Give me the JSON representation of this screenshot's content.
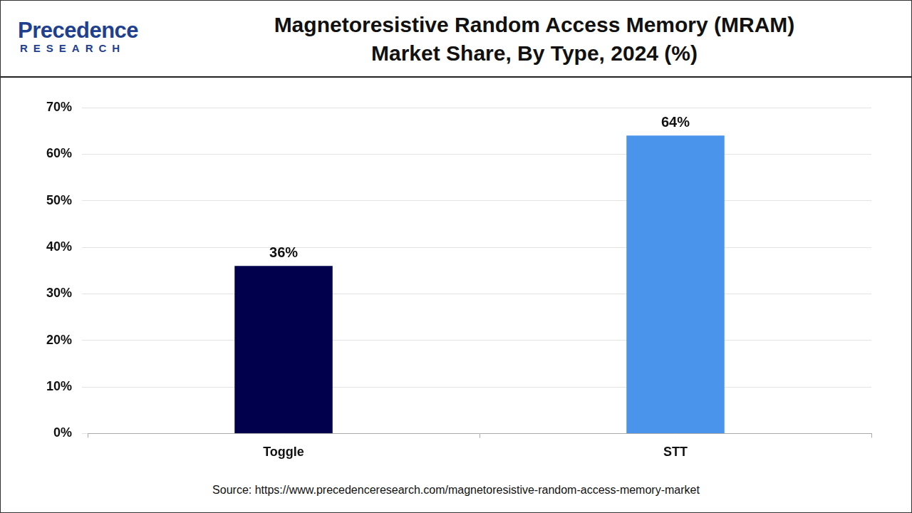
{
  "logo": {
    "name": "Precedence",
    "tagline": "RESEARCH"
  },
  "source": "Source: https://www.precedenceresearch.com/magnetoresistive-random-access-memory-market",
  "chart_data": {
    "type": "bar",
    "title": [
      "Magnetoresistive Random Access Memory (MRAM)",
      "Market Share, By Type, 2024 (%)"
    ],
    "categories": [
      "Toggle",
      "STT"
    ],
    "values": [
      36,
      64
    ],
    "value_labels": [
      "36%",
      "64%"
    ],
    "colors": [
      "#00004d",
      "#4a94ec"
    ],
    "ylim": [
      0,
      70
    ],
    "yticks": [
      {
        "value": 0,
        "label": "0%"
      },
      {
        "value": 10,
        "label": "10%"
      },
      {
        "value": 20,
        "label": "20%"
      },
      {
        "value": 30,
        "label": "30%"
      },
      {
        "value": 40,
        "label": "40%"
      },
      {
        "value": 50,
        "label": "50%"
      },
      {
        "value": 60,
        "label": "60%"
      },
      {
        "value": 70,
        "label": "70%"
      }
    ],
    "grid": true,
    "data_labels": true
  }
}
